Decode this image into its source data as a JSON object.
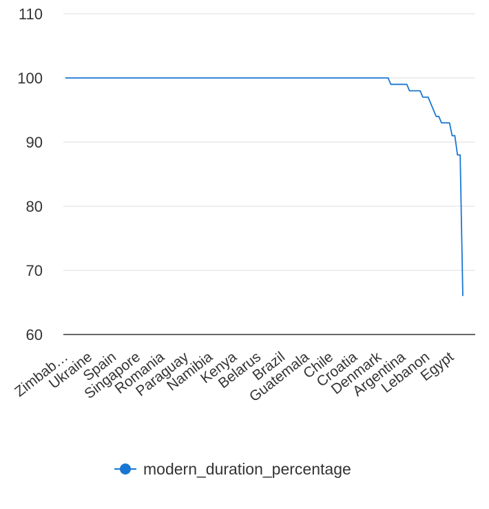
{
  "chart_data": {
    "type": "line",
    "yticks": [
      "60",
      "70",
      "80",
      "90",
      "100",
      "110"
    ],
    "ylim": [
      60,
      110
    ],
    "grid": true,
    "x_labels": [
      "Zimbab…",
      "Ukraine",
      "Spain",
      "Singapore",
      "Romania",
      "Paraguay",
      "Namibia",
      "Kenya",
      "Belarus",
      "Brazil",
      "Guatemala",
      "Chile",
      "Croatia",
      "Denmark",
      "Argentina",
      "Lebanon",
      "Egypt"
    ],
    "series": [
      {
        "name": "modern_duration_percentage",
        "color": "#1976d2",
        "values": [
          100,
          100,
          100,
          100,
          100,
          100,
          100,
          100,
          100,
          100,
          100,
          100,
          100,
          100,
          100,
          100,
          100,
          100,
          100,
          100,
          100,
          100,
          100,
          100,
          100,
          100,
          100,
          100,
          100,
          100,
          100,
          100,
          100,
          100,
          100,
          100,
          100,
          100,
          100,
          100,
          100,
          100,
          100,
          100,
          100,
          100,
          100,
          100,
          100,
          100,
          100,
          100,
          100,
          100,
          100,
          100,
          100,
          100,
          100,
          100,
          100,
          100,
          100,
          100,
          100,
          100,
          100,
          100,
          100,
          100,
          100,
          100,
          100,
          100,
          100,
          100,
          100,
          100,
          100,
          100,
          100,
          100,
          100,
          100,
          100,
          100,
          100,
          100,
          100,
          100,
          100,
          100,
          100,
          100,
          100,
          100,
          100,
          100,
          100,
          100,
          100,
          100,
          100,
          100,
          100,
          100,
          100,
          100,
          100,
          100,
          100,
          100,
          100,
          100,
          100,
          100,
          100,
          100,
          100,
          100,
          100,
          100,
          99,
          99,
          99,
          99,
          99,
          99,
          99,
          98,
          98,
          98,
          98,
          98,
          97,
          97,
          97,
          96,
          95,
          94,
          94,
          93,
          93,
          93,
          93,
          91,
          91,
          88,
          88,
          66
        ]
      }
    ],
    "legend": "bottom-center"
  }
}
